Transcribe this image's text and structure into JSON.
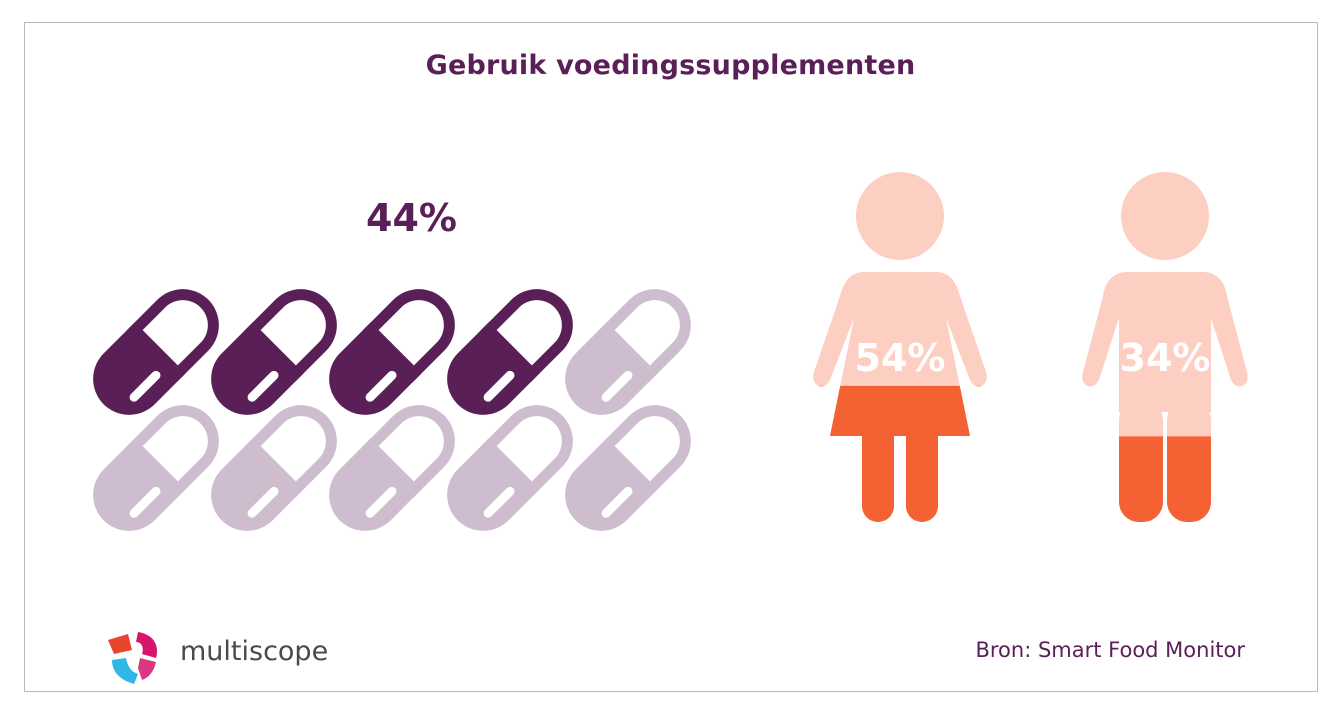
{
  "title": "Gebruik voedingssupplementen",
  "brand": "multiscope",
  "source": "Bron: Smart Food Monitor",
  "colors": {
    "pill_filled": "#5a1f57",
    "pill_empty": "#cdbdcf",
    "figure_filled": "#f46133",
    "figure_empty": "#fdcfc2",
    "logo_red": "#e8452f",
    "logo_pink": "#d6156b",
    "logo_blue": "#2fb7e5"
  },
  "chart_data": [
    {
      "type": "pictogram",
      "icon": "capsule-icon",
      "title": "",
      "value_label": "44%",
      "value": 0.44,
      "icon_count": 10,
      "rows": 2,
      "cols": 5
    },
    {
      "type": "pictogram",
      "icon": "figure-icon",
      "title": "",
      "categories": [
        "woman",
        "man"
      ],
      "series": [
        {
          "name": "",
          "values": [
            54,
            34
          ],
          "labels": [
            "54%",
            "34%"
          ]
        }
      ]
    }
  ]
}
